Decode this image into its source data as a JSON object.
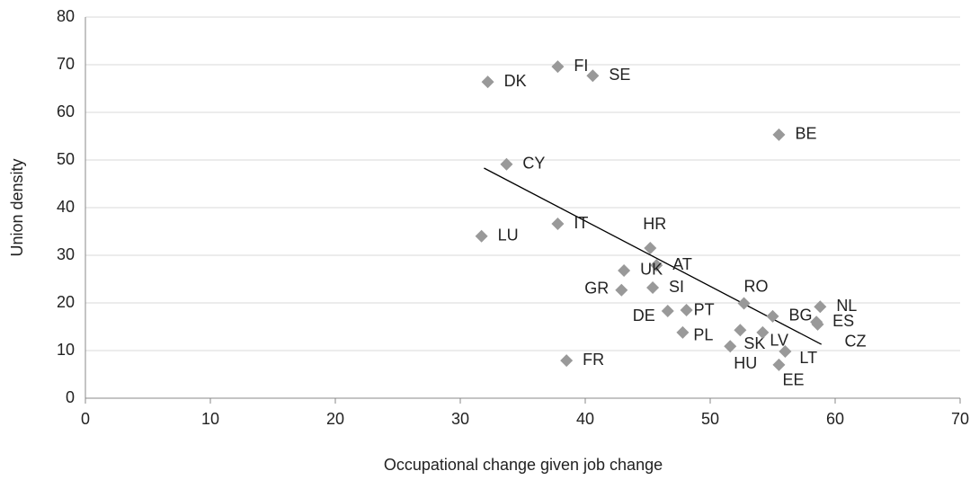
{
  "chart_data": {
    "type": "scatter",
    "xlabel": "Occupational change given job change",
    "ylabel": "Union density",
    "series": [
      {
        "color": "#999999",
        "labels": [
          "FI",
          "SE",
          "DK",
          "BE",
          "CY",
          "IT",
          "LU",
          "HR",
          "AT",
          "UK",
          "GR",
          "SI",
          "DE",
          "PT",
          "RO",
          "SK",
          "LV",
          "PL",
          "BG",
          "NL",
          "ES",
          "CZ",
          "LT",
          "HU",
          "EE",
          "FR"
        ],
        "x": [
          37.8,
          40.6,
          32.2,
          55.5,
          33.7,
          37.8,
          31.7,
          45.2,
          45.7,
          43.1,
          42.9,
          45.4,
          46.6,
          48.1,
          52.7,
          52.4,
          54.2,
          47.8,
          55.0,
          58.8,
          58.5,
          58.6,
          56.0,
          51.6,
          55.5,
          38.5
        ],
        "values": [
          69.6,
          67.7,
          66.4,
          55.3,
          49.1,
          36.6,
          34.0,
          31.5,
          27.9,
          26.8,
          22.7,
          23.2,
          18.3,
          18.5,
          19.9,
          14.3,
          13.8,
          13.8,
          17.2,
          19.2,
          16.0,
          15.5,
          9.8,
          10.9,
          7.0,
          7.9
        ]
      }
    ],
    "trendline": {
      "x": [
        31.9,
        58.9
      ],
      "values": [
        48.3,
        11.3
      ],
      "color": "#000000"
    },
    "xlim": [
      0,
      70
    ],
    "xticks": [
      0,
      10,
      20,
      30,
      40,
      50,
      60,
      70
    ],
    "ylim": [
      0,
      80
    ],
    "yticks": [
      0,
      10,
      20,
      30,
      40,
      50,
      60,
      70,
      80
    ],
    "grid": true
  }
}
